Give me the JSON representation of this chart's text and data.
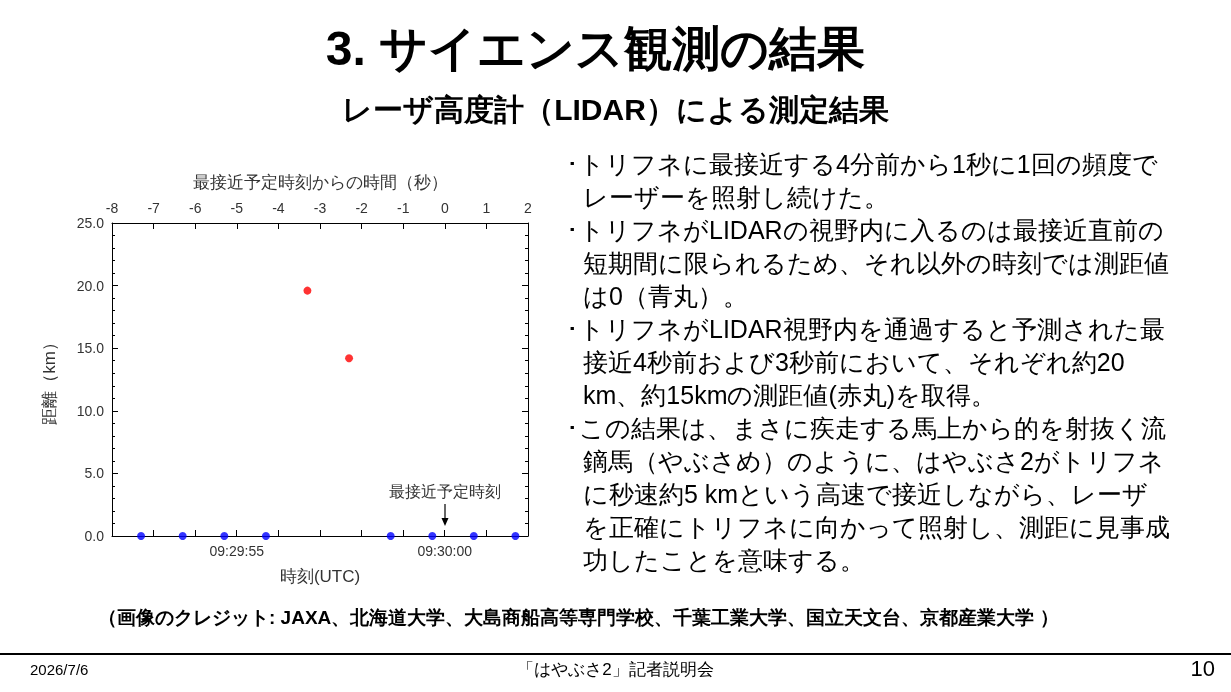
{
  "chart_data": {
    "type": "scatter",
    "title": "3. サイエンス観測の結果",
    "subtitle": "レーザ高度計（LIDAR）による測定結果",
    "xlabel": "時刻(UTC)",
    "x2label": "最接近予定時刻からの時間（秒）",
    "ylabel": "距離（km）",
    "series": [
      {
        "color": "#0000ff",
        "x": [
          9.497972,
          9.49825,
          9.498528,
          9.498806,
          9.499639,
          9.499917,
          9.500194,
          9.500472
        ],
        "values": [
          0,
          0,
          0,
          0,
          0,
          0,
          0,
          0
        ]
      },
      {
        "color": "#ff0000",
        "x": [
          9.499083,
          9.499361
        ],
        "values": [
          19.6,
          14.2
        ]
      }
    ],
    "xlim": [
      9.497778,
      9.500556
    ],
    "xticks": [
      {
        "value": 9.497778,
        "label": null
      },
      {
        "value": 9.498056,
        "label": null
      },
      {
        "value": 9.498333,
        "label": null
      },
      {
        "value": 9.498611,
        "label": "09:29:55"
      },
      {
        "value": 9.498889,
        "label": null
      },
      {
        "value": 9.499167,
        "label": null
      },
      {
        "value": 9.499444,
        "label": null
      },
      {
        "value": 9.499722,
        "label": null
      },
      {
        "value": 9.5,
        "label": "09:30:00"
      },
      {
        "value": 9.500278,
        "label": null
      },
      {
        "value": 9.500556,
        "label": null
      }
    ],
    "x2lim": [
      -8,
      2
    ],
    "x2ticks": [
      -8,
      -7,
      -6,
      -5,
      -4,
      -3,
      -2,
      -1,
      0,
      1,
      2
    ],
    "ylim": [
      0,
      25
    ],
    "yticks": [
      {
        "value": 0,
        "label": "0.0"
      },
      {
        "value": 5,
        "label": "5.0"
      },
      {
        "value": 10,
        "label": "10.0"
      },
      {
        "value": 15,
        "label": "15.0"
      },
      {
        "value": 20,
        "label": "20.0"
      },
      {
        "value": 25,
        "label": "25.0"
      }
    ],
    "marker": "circle",
    "annotations": [
      "･トリフネに最接近する4分前から1秒に1回の頻度でレーザーを照射し続けた。",
      "･トリフネがLIDARの視野内に入るのは最接近直前の短期間に限られるため、それ以外の時刻では測距値は0（青丸）。",
      "･トリフネがLIDAR視野内を通過すると予測された最接近4秒前および3秒前において、それぞれ約20 km、約15kmの測距値(赤丸)を取得。",
      "･この結果は、まさに疾走する馬上から的を射抜く流鏑馬（やぶさめ）のように、はやぶさ2がトリフネに秒速約5 kmという高速で接近しながら、レーザを正確にトリフネに向かって照射し、測距に見事成功したことを意味する。",
      "（画像のクレジット: JAXA、北海道大学、大島商船高等専門学校、千葉工業大学、国立天文台、京都産業大学 ）",
      "2026/7/6",
      "「はやぶさ2」記者説明会",
      "10",
      "最接近予定時刻"
    ]
  }
}
